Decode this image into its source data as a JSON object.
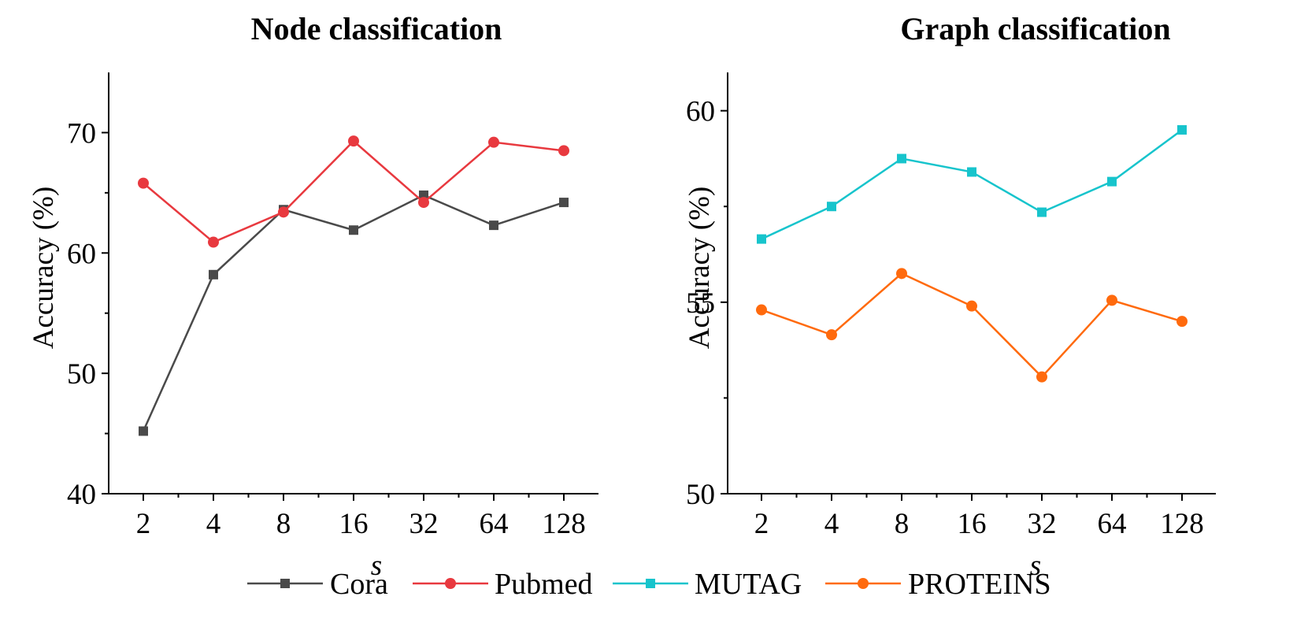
{
  "chart_data": [
    {
      "type": "line",
      "title": "Node classification",
      "xlabel": "s",
      "ylabel": "Accuracy (%)",
      "categories": [
        "2",
        "4",
        "8",
        "16",
        "32",
        "64",
        "128"
      ],
      "ylim": [
        40,
        75
      ],
      "yticks": [
        40,
        50,
        60,
        70
      ],
      "series": [
        {
          "name": "Cora",
          "marker": "square",
          "color": "#4a4a4a",
          "values": [
            45.2,
            58.2,
            63.6,
            61.9,
            64.8,
            62.3,
            64.2
          ]
        },
        {
          "name": "Pubmed",
          "marker": "circle",
          "color": "#e8393f",
          "values": [
            65.8,
            60.9,
            63.4,
            69.3,
            64.2,
            69.2,
            68.5
          ]
        }
      ]
    },
    {
      "type": "line",
      "title": "Graph classification",
      "xlabel": "s",
      "ylabel": "Accuracy (%)",
      "categories": [
        "2",
        "4",
        "8",
        "16",
        "32",
        "64",
        "128"
      ],
      "ylim": [
        50,
        61
      ],
      "yticks": [
        50,
        55,
        60
      ],
      "series": [
        {
          "name": "MUTAG",
          "marker": "square",
          "color": "#17c4cc",
          "values": [
            56.65,
            57.5,
            58.75,
            58.4,
            57.35,
            58.15,
            59.5
          ]
        },
        {
          "name": "PROTEINS",
          "marker": "circle",
          "color": "#ff6a0d",
          "values": [
            54.8,
            54.15,
            55.75,
            54.9,
            53.05,
            55.05,
            54.5
          ]
        }
      ]
    }
  ],
  "legend": [
    {
      "name": "Cora",
      "marker": "square",
      "color": "#4a4a4a"
    },
    {
      "name": "Pubmed",
      "marker": "circle",
      "color": "#e8393f"
    },
    {
      "name": "MUTAG",
      "marker": "square",
      "color": "#17c4cc"
    },
    {
      "name": "PROTEINS",
      "marker": "circle",
      "color": "#ff6a0d"
    }
  ]
}
